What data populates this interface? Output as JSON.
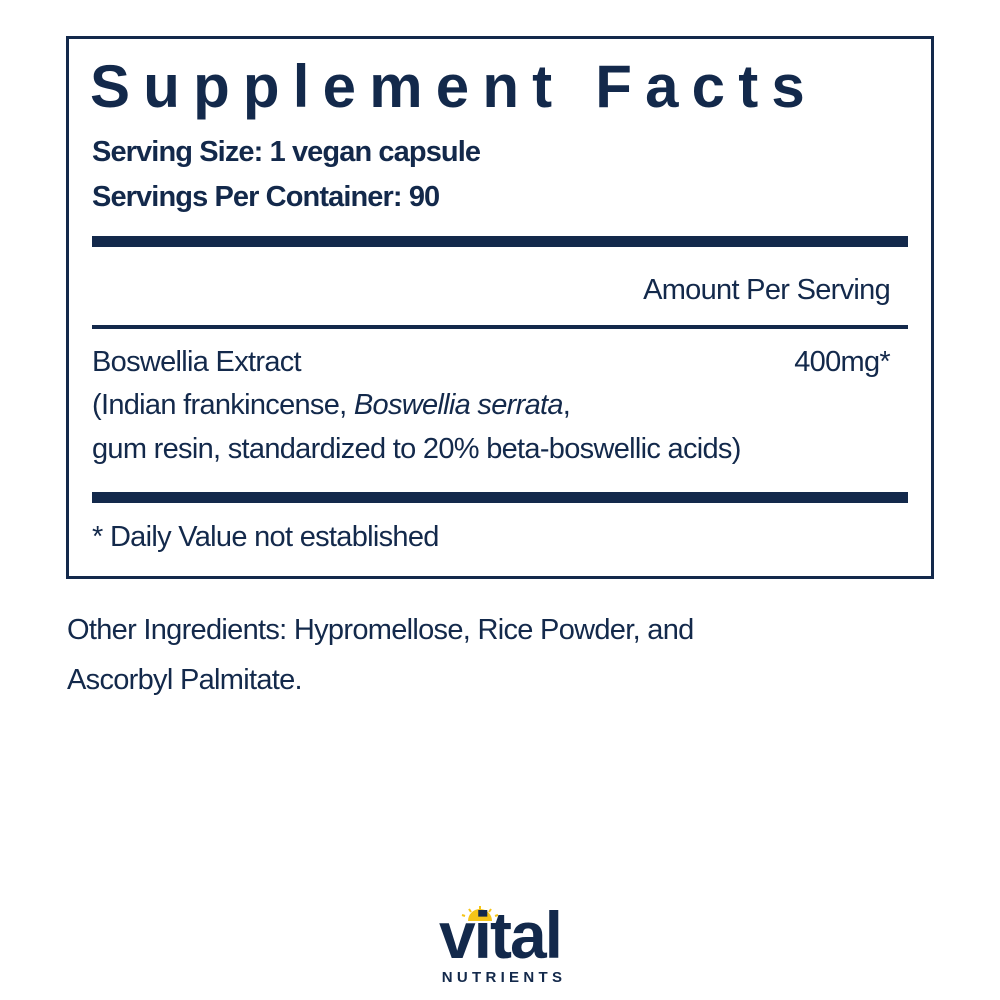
{
  "panel": {
    "title": "Supplement Facts",
    "serving_size": "Serving Size: 1 vegan capsule",
    "servings_per_container": "Servings Per Container: 90",
    "amount_header": "Amount Per Serving",
    "ingredients": [
      {
        "name": "Boswellia Extract",
        "amount": "400mg*",
        "detail_line1_pre": "(Indian frankincense, ",
        "detail_line1_italic": "Boswellia serrata",
        "detail_line1_post": ",",
        "detail_line2": "gum resin, standardized to 20% beta-boswellic acids)"
      }
    ],
    "footnote": "* Daily Value not established"
  },
  "other_ingredients": {
    "line1": "Other Ingredients: Hypromellose, Rice Powder, and",
    "line2": "Ascorbyl Palmitate."
  },
  "brand": {
    "logo_word": "vital",
    "logo_sub": "NUTRIENTS",
    "colors": {
      "navy": "#13294b",
      "sun": "#f5c518"
    }
  }
}
